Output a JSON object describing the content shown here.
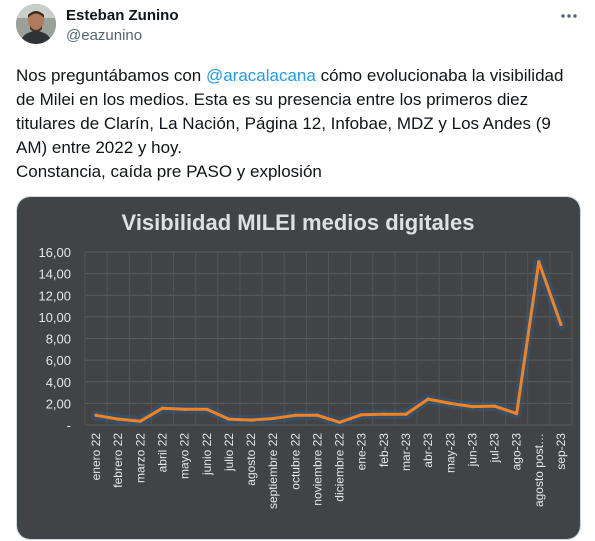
{
  "tweet": {
    "author_name": "Esteban Zunino",
    "author_handle": "@eazunino",
    "text_before_mention": "Nos preguntábamos con ",
    "mention": "@aracalacana",
    "text_after_mention": " cómo evolucionaba la visibilidad de Milei en los medios. Esta es su presencia entre los primeros diez titulares de Clarín, La Nación, Página 12, Infobae, MDZ y Los Andes (9 AM) entre 2022 y hoy.",
    "text_line2": "Constancia, caída pre PASO y explosión",
    "more_icon": "more-horizontal-icon"
  },
  "chart_data": {
    "type": "line",
    "title": "Visibilidad MILEI medios digitales",
    "categories": [
      "enero 22",
      "febrero 22",
      "marzo 22",
      "abril 22",
      "mayo 22",
      "junio 22",
      "julio 22",
      "agosto 22",
      "septiembre 22",
      "octubre 22",
      "noviembre 22",
      "diciembre 22",
      "ene-23",
      "feb-23",
      "mar-23",
      "abr-23",
      "may-23",
      "jun-23",
      "jul-23",
      "ago-23",
      "agosto post…",
      "sep-23"
    ],
    "values": [
      0.9,
      0.55,
      0.35,
      1.55,
      1.45,
      1.45,
      0.55,
      0.45,
      0.6,
      0.9,
      0.9,
      0.25,
      0.95,
      1.0,
      1.0,
      2.4,
      2.0,
      1.7,
      1.75,
      1.05,
      15.1,
      9.3
    ],
    "y_tick_labels": [
      "-",
      "2,00",
      "4,00",
      "6,00",
      "8,00",
      "10,00",
      "12,00",
      "14,00",
      "16,00"
    ],
    "ylim": [
      0,
      16
    ],
    "grid": true,
    "line_color": "#f58220",
    "background_color": "#414345"
  }
}
